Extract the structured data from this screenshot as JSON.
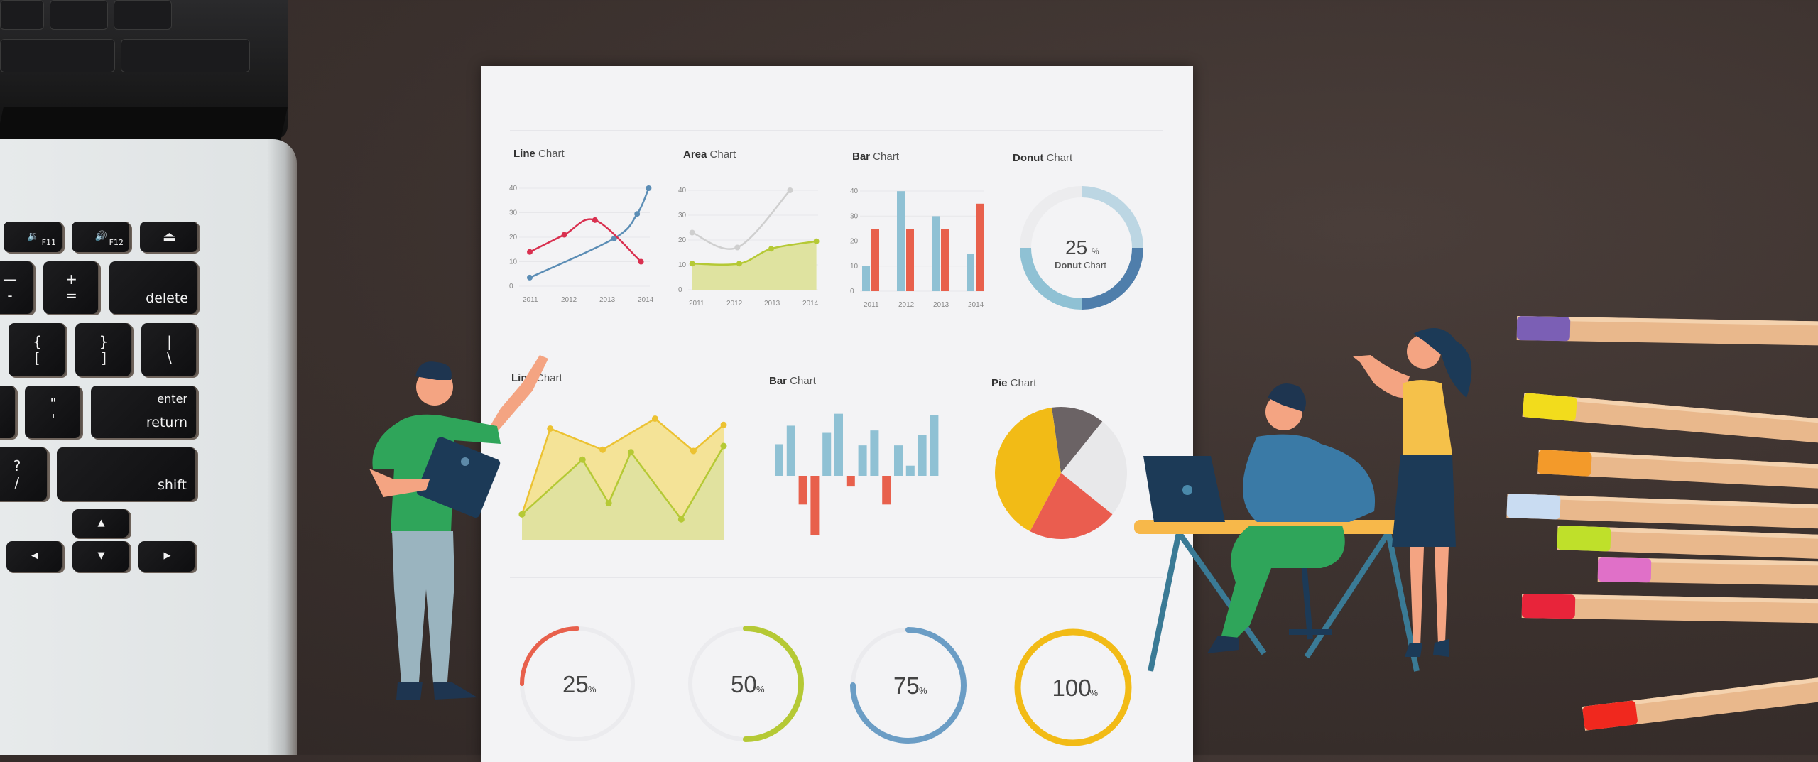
{
  "laptop": {
    "keys": [
      {
        "top": "🔉",
        "fn": "F11"
      },
      {
        "top": "🔊",
        "fn": "F12"
      },
      {
        "top": "⏏"
      },
      {
        "top": "—",
        "bottom": "-"
      },
      {
        "top": "+",
        "bottom": "="
      },
      {
        "word": "delete"
      },
      {
        "top": "{",
        "bottom": "["
      },
      {
        "top": "}",
        "bottom": "]"
      },
      {
        "top": "|",
        "bottom": "\\"
      },
      {
        "top": "\"",
        "bottom": "'"
      },
      {
        "word_top": "enter",
        "word": "return"
      },
      {
        "top": "?",
        "bottom": "/"
      },
      {
        "word": "shift"
      },
      {
        "top": "▲"
      },
      {
        "top": "▼"
      },
      {
        "top": "◀"
      },
      {
        "top": "▶"
      }
    ]
  },
  "paper": {
    "titles": [
      {
        "bold": "Line",
        "rest": " Chart"
      },
      {
        "bold": "Area",
        "rest": " Chart"
      },
      {
        "bold": "Bar",
        "rest": " Chart"
      },
      {
        "bold": "Donut",
        "rest": " Chart"
      },
      {
        "bold": "Line",
        "rest": " Chart"
      },
      {
        "bold": "Bar",
        "rest": " Chart"
      },
      {
        "bold": "Pie",
        "rest": " Chart"
      }
    ],
    "donut_center": {
      "value": "25",
      "unit": "%",
      "bold": "Donut",
      "rest": " Chart"
    }
  },
  "chart_data": [
    {
      "type": "line",
      "title": "Line Chart",
      "ylim": [
        0,
        40
      ],
      "yticks": [
        "0",
        "10",
        "20",
        "30",
        "40"
      ],
      "xticks": [
        "2011",
        "2012",
        "2013",
        "2014"
      ],
      "grid": true,
      "series": [
        {
          "color": "#5b8db5",
          "x": [
            2011,
            2013.2,
            2013.8,
            2014.1
          ],
          "y": [
            3.5,
            19.5,
            29.5,
            40
          ]
        },
        {
          "color": "#d9304f",
          "x": [
            2011,
            2011.9,
            2012.7,
            2013.9
          ],
          "y": [
            14,
            21,
            27,
            10
          ]
        }
      ]
    },
    {
      "type": "area",
      "title": "Area Chart",
      "ylim": [
        0,
        40
      ],
      "yticks": [
        "0",
        "10",
        "20",
        "30",
        "40"
      ],
      "xticks": [
        "2011",
        "2012",
        "2013",
        "2014"
      ],
      "grid": true,
      "series": [
        {
          "color": "#cfcfcf",
          "x": [
            2010.9,
            2012.1,
            2013.5
          ],
          "y": [
            23,
            17,
            40
          ],
          "fill": false
        },
        {
          "color": "#b5c935",
          "x": [
            2010.9,
            2012.15,
            2013.0,
            2014.2
          ],
          "y": [
            10.5,
            10.5,
            16.5,
            19.5
          ],
          "fill": true
        }
      ]
    },
    {
      "type": "bar",
      "title": "Bar Chart",
      "ylim": [
        0,
        40
      ],
      "yticks": [
        "0",
        "10",
        "20",
        "30",
        "40"
      ],
      "categories": [
        "2011",
        "2012",
        "2013",
        "2014"
      ],
      "grid": true,
      "series": [
        {
          "color": "#8fc1d4",
          "values": [
            10,
            40,
            30,
            15
          ]
        },
        {
          "color": "#e8604c",
          "values": [
            25,
            25,
            25,
            35
          ]
        }
      ]
    },
    {
      "type": "pie",
      "title": "Donut Chart",
      "donut": true,
      "center_label": "25%",
      "slices": [
        {
          "value": 25,
          "color": "#bcd6e3"
        },
        {
          "value": 25,
          "color": "#4f7eab"
        },
        {
          "value": 25,
          "color": "#8fc1d4"
        },
        {
          "value": 25,
          "color": "#ececee"
        }
      ]
    },
    {
      "type": "area",
      "title": "Line Chart",
      "xlim": [
        0,
        100
      ],
      "ylim": [
        0,
        100
      ],
      "series": [
        {
          "color": "#ecc232",
          "fill": "#f3df86",
          "x": [
            0,
            14,
            40,
            66,
            85,
            100
          ],
          "y": [
            21,
            90,
            73,
            98,
            72,
            93
          ]
        },
        {
          "color": "#b5c935",
          "fill": "#dde2a0",
          "x": [
            0,
            30,
            43,
            54,
            79,
            100
          ],
          "y": [
            21,
            65,
            30,
            71,
            17,
            76
          ]
        }
      ]
    },
    {
      "type": "bar",
      "title": "Bar Chart",
      "values": [
        53,
        84,
        -48,
        -100,
        72,
        104,
        -18,
        51,
        76,
        -48,
        51,
        17,
        68,
        102
      ],
      "colors": {
        "positive": "#8fc1d4",
        "negative": "#e8604c"
      }
    },
    {
      "type": "pie",
      "title": "Pie Chart",
      "slices": [
        {
          "value": 13,
          "color": "#6b6365"
        },
        {
          "value": 25,
          "color": "#e8e8ea"
        },
        {
          "value": 22,
          "color": "#ea5d4f"
        },
        {
          "value": 40,
          "color": "#f2bb16"
        }
      ]
    },
    {
      "type": "gauge",
      "gauges": [
        {
          "value": 25,
          "label": "25",
          "unit": "%",
          "color": "#e8604c"
        },
        {
          "value": 50,
          "label": "50",
          "unit": "%",
          "color": "#b5c935"
        },
        {
          "value": 75,
          "label": "75",
          "unit": "%",
          "color": "#6b9dc5"
        },
        {
          "value": 100,
          "label": "100",
          "unit": "%",
          "color": "#f2bb16"
        }
      ]
    }
  ],
  "pencils": [
    {
      "cap": "#7b5fb5"
    },
    {
      "cap": "#f2dc1c"
    },
    {
      "cap": "#f39a2a"
    },
    {
      "cap": "#c9dcf2"
    },
    {
      "cap": "#bfe02a"
    },
    {
      "cap": "#e070c8"
    },
    {
      "cap": "#e8243a"
    },
    {
      "cap": "#f0281e"
    }
  ],
  "colors": {
    "background": "#3a302d",
    "paper": "#f3f3f5",
    "laptop": "#e3e6e7"
  }
}
